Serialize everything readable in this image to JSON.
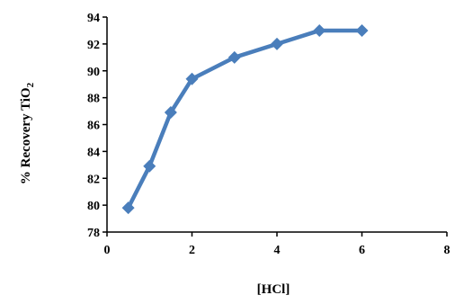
{
  "chart_data": {
    "type": "line",
    "title": "",
    "xlabel": "[HCl]",
    "ylabel": "% Recovery TiO",
    "ylabel_subscript": "2",
    "xlim": [
      0,
      8
    ],
    "ylim": [
      78,
      94
    ],
    "x_ticks": [
      0,
      2,
      4,
      6,
      8
    ],
    "y_ticks": [
      78,
      80,
      82,
      84,
      86,
      88,
      90,
      92,
      94
    ],
    "grid": false,
    "legend": "none",
    "series": [
      {
        "color": "#4A7EBB",
        "marker": "diamond",
        "x": [
          0.5,
          1,
          1.5,
          2,
          3,
          4,
          5,
          6
        ],
        "y": [
          79.8,
          82.9,
          86.9,
          89.4,
          91.0,
          92.0,
          93.0,
          93.0
        ]
      }
    ]
  }
}
